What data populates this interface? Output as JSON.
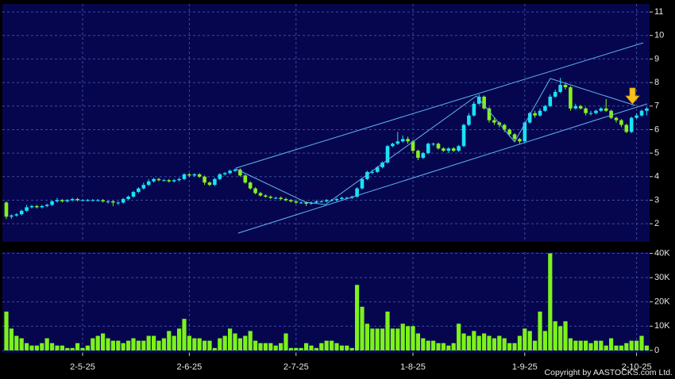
{
  "chart_data": [
    {
      "type": "candlestick",
      "up_color": "#19e3f5",
      "down_color": "#86f01c",
      "grid": true,
      "xlim": [
        -0.78,
        126.56
      ],
      "ylim": [
        1.23,
        11.34
      ],
      "yticks": [
        2,
        3,
        4,
        5,
        6,
        7,
        8,
        9,
        10,
        11
      ],
      "open": [
        2.9,
        2.3,
        2.35,
        2.4,
        2.55,
        2.7,
        2.75,
        2.7,
        2.75,
        2.8,
        2.95,
        3.0,
        2.95,
        3.0,
        3.05,
        3.0,
        3.0,
        3.0,
        3.0,
        3.0,
        2.95,
        2.95,
        2.9,
        2.9,
        3.05,
        3.15,
        3.35,
        3.5,
        3.65,
        3.8,
        3.9,
        3.85,
        3.85,
        3.8,
        3.85,
        3.9,
        4.1,
        4.05,
        4.1,
        4.0,
        3.75,
        3.65,
        3.9,
        4.1,
        4.15,
        4.25,
        4.3,
        4.05,
        3.75,
        3.5,
        3.3,
        3.2,
        3.15,
        3.1,
        3.1,
        3.05,
        3.0,
        2.95,
        2.9,
        2.9,
        2.85,
        2.9,
        2.95,
        2.95,
        3.0,
        3.0,
        3.05,
        3.1,
        3.1,
        3.15,
        3.5,
        3.9,
        4.2,
        4.2,
        4.4,
        4.6,
        5.3,
        5.4,
        5.5,
        5.6,
        5.5,
        5.1,
        4.8,
        5.0,
        5.4,
        5.4,
        5.2,
        5.1,
        5.2,
        5.1,
        5.3,
        6.2,
        6.6,
        7.1,
        7.4,
        6.9,
        6.4,
        6.3,
        6.2,
        6.0,
        5.8,
        5.6,
        5.5,
        6.3,
        6.7,
        6.6,
        6.8,
        7.0,
        7.4,
        7.6,
        7.9,
        7.8,
        6.9,
        7.0,
        6.9,
        6.7,
        6.7,
        6.8,
        6.9,
        6.8,
        6.5,
        6.4,
        6.2,
        5.9,
        6.5,
        6.6,
        6.8
      ],
      "high": [
        2.95,
        2.4,
        2.45,
        2.6,
        2.8,
        2.8,
        2.8,
        2.8,
        2.85,
        3.0,
        3.1,
        3.05,
        3.05,
        3.1,
        3.1,
        3.05,
        3.05,
        3.05,
        3.05,
        3.05,
        3.0,
        3.0,
        2.95,
        3.1,
        3.2,
        3.4,
        3.55,
        3.75,
        3.9,
        3.95,
        3.95,
        3.9,
        3.9,
        3.9,
        3.95,
        4.15,
        4.15,
        4.15,
        4.15,
        4.05,
        3.8,
        3.95,
        4.15,
        4.2,
        4.3,
        4.35,
        4.35,
        4.1,
        3.8,
        3.55,
        3.35,
        3.25,
        3.2,
        3.15,
        3.15,
        3.1,
        3.05,
        3.0,
        2.95,
        2.95,
        2.95,
        3.0,
        3.0,
        3.05,
        3.05,
        3.1,
        3.15,
        3.15,
        3.2,
        3.55,
        3.95,
        4.25,
        4.3,
        4.45,
        4.65,
        5.35,
        5.45,
        5.9,
        5.75,
        5.7,
        5.55,
        5.15,
        5.05,
        5.45,
        5.45,
        5.45,
        5.25,
        5.25,
        5.25,
        5.35,
        6.25,
        6.7,
        7.2,
        7.5,
        7.45,
        6.95,
        6.5,
        6.35,
        6.25,
        6.05,
        5.85,
        5.65,
        6.35,
        6.75,
        6.8,
        6.9,
        7.05,
        7.5,
        7.7,
        8.2,
        7.95,
        7.85,
        7.1,
        7.05,
        6.95,
        6.8,
        6.85,
        6.95,
        7.3,
        6.85,
        6.55,
        6.45,
        6.25,
        6.55,
        6.7,
        6.85,
        6.95
      ],
      "low": [
        2.2,
        2.2,
        2.3,
        2.35,
        2.5,
        2.65,
        2.65,
        2.65,
        2.7,
        2.75,
        2.9,
        2.9,
        2.9,
        2.95,
        2.95,
        2.95,
        2.95,
        2.95,
        2.95,
        2.9,
        2.85,
        2.75,
        2.8,
        2.85,
        3.0,
        3.1,
        3.3,
        3.45,
        3.6,
        3.75,
        3.8,
        3.8,
        3.75,
        3.75,
        3.8,
        3.85,
        4.0,
        4.0,
        3.95,
        3.65,
        3.6,
        3.6,
        3.85,
        4.05,
        4.1,
        4.2,
        4.0,
        3.7,
        3.45,
        3.25,
        3.15,
        3.1,
        3.05,
        3.05,
        3.0,
        2.95,
        2.9,
        2.85,
        2.85,
        2.75,
        2.8,
        2.85,
        2.9,
        2.9,
        2.95,
        2.95,
        3.0,
        3.05,
        3.05,
        3.1,
        3.45,
        3.85,
        4.1,
        4.15,
        4.35,
        4.55,
        5.25,
        5.35,
        5.45,
        5.4,
        5.0,
        4.7,
        4.75,
        4.95,
        5.3,
        5.15,
        5.05,
        5.0,
        5.05,
        5.05,
        5.25,
        6.15,
        6.55,
        7.05,
        6.85,
        6.3,
        6.2,
        6.1,
        5.9,
        5.7,
        5.5,
        5.4,
        5.45,
        6.25,
        6.5,
        6.55,
        6.75,
        6.95,
        7.35,
        7.55,
        7.7,
        6.8,
        6.85,
        6.85,
        6.6,
        6.6,
        6.65,
        6.75,
        6.75,
        6.45,
        6.3,
        6.1,
        5.85,
        5.85,
        6.45,
        6.55,
        6.6
      ],
      "close": [
        2.3,
        2.35,
        2.4,
        2.55,
        2.7,
        2.75,
        2.7,
        2.75,
        2.8,
        2.95,
        3.0,
        2.95,
        3.0,
        3.05,
        3.0,
        3.0,
        3.0,
        3.0,
        3.0,
        2.95,
        2.95,
        2.9,
        2.9,
        3.05,
        3.15,
        3.35,
        3.5,
        3.65,
        3.8,
        3.9,
        3.85,
        3.85,
        3.8,
        3.85,
        3.9,
        4.1,
        4.05,
        4.1,
        4.0,
        3.75,
        3.65,
        3.9,
        4.1,
        4.15,
        4.25,
        4.3,
        4.05,
        3.75,
        3.5,
        3.3,
        3.2,
        3.15,
        3.1,
        3.1,
        3.05,
        3.0,
        2.95,
        2.9,
        2.9,
        2.85,
        2.9,
        2.95,
        2.95,
        3.0,
        3.0,
        3.05,
        3.1,
        3.1,
        3.15,
        3.5,
        3.9,
        4.2,
        4.2,
        4.4,
        4.6,
        5.3,
        5.4,
        5.5,
        5.6,
        5.5,
        5.1,
        4.8,
        5.0,
        5.4,
        5.4,
        5.2,
        5.1,
        5.2,
        5.1,
        5.3,
        6.2,
        6.6,
        7.1,
        7.4,
        6.9,
        6.4,
        6.3,
        6.2,
        6.0,
        5.8,
        5.6,
        5.5,
        6.3,
        6.7,
        6.6,
        6.8,
        7.0,
        7.4,
        7.6,
        7.9,
        7.8,
        6.9,
        7.0,
        6.9,
        6.7,
        6.7,
        6.8,
        6.9,
        6.8,
        6.5,
        6.4,
        6.2,
        5.9,
        6.5,
        6.6,
        6.8,
        6.9
      ]
    },
    {
      "type": "bar",
      "color": "#7cf21a",
      "grid": true,
      "xlim": [
        -0.78,
        126.56
      ],
      "ylim": [
        -1000,
        40500
      ],
      "yticks": [
        0,
        {
          "value": 10000,
          "label": "10K"
        },
        {
          "value": 20000,
          "label": "20K"
        },
        {
          "value": 30000,
          "label": "30K"
        },
        {
          "value": 40000,
          "label": "40K"
        }
      ],
      "xticks": [
        {
          "value": 15,
          "label": "2-5-25"
        },
        {
          "value": 36,
          "label": "2-6-25"
        },
        {
          "value": 57,
          "label": "2-7-25"
        },
        {
          "value": 80,
          "label": "1-8-25"
        },
        {
          "value": 102,
          "label": "1-9-25"
        },
        {
          "value": 124,
          "label": "2-10-25"
        }
      ],
      "values": [
        16000,
        9000,
        6000,
        5000,
        3000,
        2000,
        2000,
        3000,
        5000,
        3000,
        2000,
        2000,
        1000,
        1000,
        3000,
        1000,
        2000,
        5000,
        6000,
        7000,
        5000,
        4000,
        4000,
        3000,
        4000,
        5000,
        4000,
        4000,
        6000,
        6000,
        4000,
        5000,
        8000,
        6000,
        9000,
        13000,
        6000,
        5000,
        5000,
        4000,
        4000,
        1000,
        5000,
        6000,
        9000,
        7000,
        5000,
        6000,
        8000,
        4000,
        3000,
        3000,
        3000,
        2000,
        3000,
        7000,
        1000,
        1000,
        1000,
        3000,
        2000,
        1000,
        3000,
        4000,
        4000,
        3000,
        2000,
        2000,
        1000,
        27000,
        18000,
        11000,
        9000,
        9000,
        9000,
        16000,
        9000,
        9000,
        11000,
        10000,
        10000,
        7000,
        5000,
        4000,
        4000,
        3000,
        3000,
        2000,
        3000,
        11000,
        7000,
        6000,
        8000,
        6000,
        7000,
        6000,
        5000,
        6000,
        5000,
        3000,
        3000,
        6000,
        9000,
        8000,
        4000,
        16000,
        8000,
        40000,
        12000,
        10000,
        12000,
        5000,
        4000,
        4000,
        4000,
        3000,
        4000,
        4000,
        2000,
        5000,
        2000,
        2000,
        3000,
        4000,
        4000,
        6000,
        2000
      ]
    }
  ],
  "copyright": "Copyright by AASTOCKS.com Ltd."
}
